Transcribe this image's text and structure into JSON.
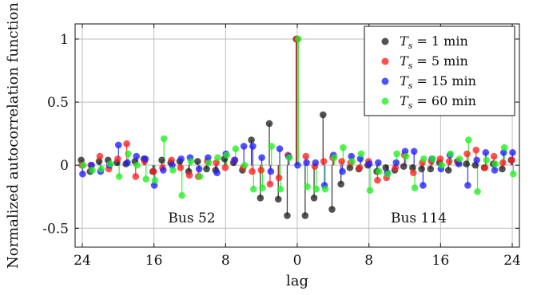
{
  "chart_data": {
    "type": "scatter",
    "title": "",
    "xlabel": "lag",
    "ylabel": "Normalized autocorrelation function",
    "ylim": [
      -0.65,
      1.12
    ],
    "yticks": [
      1,
      0.5,
      0,
      -0.5
    ],
    "ytick_labels": [
      "1",
      "0.5",
      "0",
      "-0.5"
    ],
    "xtick_labels": [
      "24",
      "16",
      "8",
      "0",
      "8",
      "16",
      "24"
    ],
    "grid": true,
    "legend_position": "top-right",
    "annotations": [
      "Bus 52",
      "Bus 114"
    ],
    "colors": {
      "black": "#222222",
      "red": "#ff2020",
      "blue": "#2020ff",
      "green": "#22ee22"
    },
    "x_positions": [
      -24,
      -23,
      -22,
      -21,
      -20,
      -19,
      -18,
      -17,
      -16,
      -15,
      -14,
      -13,
      -12,
      -11,
      -10,
      -9,
      -8,
      -7,
      -6,
      -5,
      -4,
      -3,
      -2,
      -1,
      0,
      1,
      2,
      3,
      4,
      5,
      6,
      7,
      8,
      9,
      10,
      11,
      12,
      13,
      14,
      15,
      16,
      17,
      18,
      19,
      20,
      21,
      22,
      23,
      24
    ],
    "series": [
      {
        "name": "T_s = 1 min",
        "legend_main": "T",
        "legend_sub": "s",
        "legend_rest": " = 1 min",
        "color": "#222222",
        "values": [
          0.04,
          -0.05,
          0.03,
          0.04,
          0.02,
          0.01,
          0.03,
          0.05,
          -0.05,
          0.04,
          0.02,
          0.03,
          -0.05,
          0.03,
          -0.03,
          -0.04,
          0.05,
          0.02,
          -0.04,
          0.2,
          -0.26,
          0.33,
          -0.27,
          -0.4,
          1.0,
          -0.4,
          -0.26,
          0.4,
          -0.35,
          -0.15,
          -0.02,
          -0.03,
          0.0,
          -0.05,
          -0.02,
          -0.04,
          -0.01,
          -0.02,
          -0.03,
          -0.03,
          0.02,
          -0.04,
          0.03,
          0.01,
          0.0,
          -0.02,
          0.01,
          -0.03,
          0.04
        ]
      },
      {
        "name": "T_s = 5 min",
        "legend_main": "T",
        "legend_sub": "s",
        "legend_rest": " = 5 min",
        "color": "#ff2020",
        "values": [
          0.0,
          0.0,
          0.07,
          -0.03,
          0.05,
          0.17,
          -0.09,
          0.03,
          -0.05,
          -0.02,
          0.04,
          -0.02,
          -0.08,
          -0.09,
          0.03,
          0.02,
          -0.02,
          0.04,
          -0.02,
          -0.05,
          -0.04,
          -0.15,
          -0.1,
          0.08,
          1.0,
          0.07,
          -0.01,
          0.03,
          0.06,
          0.03,
          0.02,
          -0.02,
          0.03,
          -0.12,
          -0.1,
          -0.02,
          0.08,
          -0.06,
          0.02,
          0.03,
          0.05,
          0.03,
          0.02,
          0.09,
          0.12,
          -0.02,
          0.07,
          0.02,
          0.04
        ]
      },
      {
        "name": "T_s = 15 min",
        "legend_main": "T",
        "legend_sub": "s",
        "legend_rest": " = 15 min",
        "color": "#2020ff",
        "values": [
          -0.07,
          0.0,
          -0.05,
          0.0,
          0.16,
          0.02,
          0.07,
          0.05,
          -0.16,
          -0.04,
          0.0,
          0.05,
          0.06,
          -0.03,
          0.06,
          -0.06,
          0.09,
          0.04,
          0.15,
          0.15,
          0.06,
          -0.05,
          0.13,
          0.07,
          0.0,
          0.02,
          0.02,
          -0.16,
          0.08,
          -0.05,
          0.07,
          0.05,
          0.01,
          0.02,
          -0.06,
          0.02,
          0.11,
          0.11,
          -0.16,
          0.05,
          -0.03,
          0.08,
          0.01,
          -0.16,
          0.04,
          0.1,
          -0.04,
          0.1,
          0.1
        ]
      },
      {
        "name": "T_s = 60 min",
        "legend_main": "T",
        "legend_sub": "s",
        "legend_rest": " = 60 min",
        "color": "#22ee22",
        "values": [
          0.0,
          -0.04,
          -0.03,
          0.01,
          -0.09,
          0.09,
          0.0,
          -0.11,
          -0.12,
          0.21,
          -0.04,
          -0.24,
          0.03,
          -0.09,
          0.02,
          0.06,
          0.08,
          0.13,
          0.0,
          -0.19,
          -0.18,
          0.15,
          -0.19,
          0.06,
          1.0,
          -0.17,
          -0.19,
          -0.19,
          0.06,
          0.14,
          0.03,
          0.09,
          -0.2,
          -0.05,
          -0.07,
          0.09,
          0.07,
          -0.18,
          0.05,
          0.05,
          0.0,
          0.09,
          0.05,
          0.2,
          -0.21,
          0.04,
          0.01,
          0.14,
          -0.07
        ]
      }
    ]
  }
}
